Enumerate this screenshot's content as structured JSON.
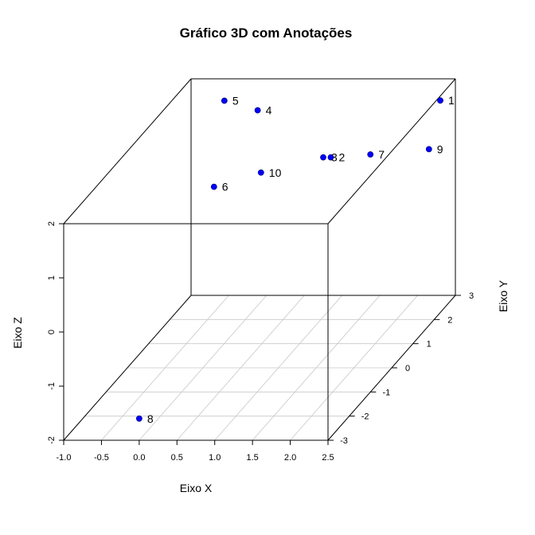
{
  "chart_data": {
    "type": "scatter",
    "title": "Gráfico 3D com Anotações",
    "xlabel": "Eixo X",
    "ylabel": "Eixo Y",
    "zlabel": "Eixo Z",
    "xlim": [
      -1.0,
      2.5
    ],
    "ylim": [
      -3,
      3
    ],
    "zlim": [
      -2,
      2
    ],
    "x_ticks": [
      "-1.0",
      "-0.5",
      "0.0",
      "0.5",
      "1.0",
      "1.5",
      "2.0",
      "2.5"
    ],
    "y_ticks": [
      "-3",
      "-2",
      "-1",
      "0",
      "1",
      "2",
      "3"
    ],
    "z_ticks": [
      "-2",
      "-1",
      "0",
      "1",
      "2"
    ],
    "grid": true,
    "point_color": "#0000ff",
    "points": [
      {
        "label": "1",
        "x": 2.3,
        "y": 3.0,
        "z": 1.6
      },
      {
        "label": "2",
        "x": 0.85,
        "y": 3.0,
        "z": 0.55
      },
      {
        "label": "3",
        "x": 0.75,
        "y": 3.0,
        "z": 0.55
      },
      {
        "label": "4",
        "x": 0.5,
        "y": 0.8,
        "z": 2.4
      },
      {
        "label": "5",
        "x": 0.2,
        "y": 0.3,
        "z": 2.8
      },
      {
        "label": "6",
        "x": 0.22,
        "y": -0.26,
        "z": 1.46
      },
      {
        "label": "7",
        "x": 1.65,
        "y": 2.02,
        "z": 1.04
      },
      {
        "label": "8",
        "x": 0.0,
        "y": -3.0,
        "z": -1.6
      },
      {
        "label": "9",
        "x": 2.15,
        "y": 3.0,
        "z": 0.7
      },
      {
        "label": "10",
        "x": 0.62,
        "y": 0.53,
        "z": 1.37
      }
    ]
  }
}
